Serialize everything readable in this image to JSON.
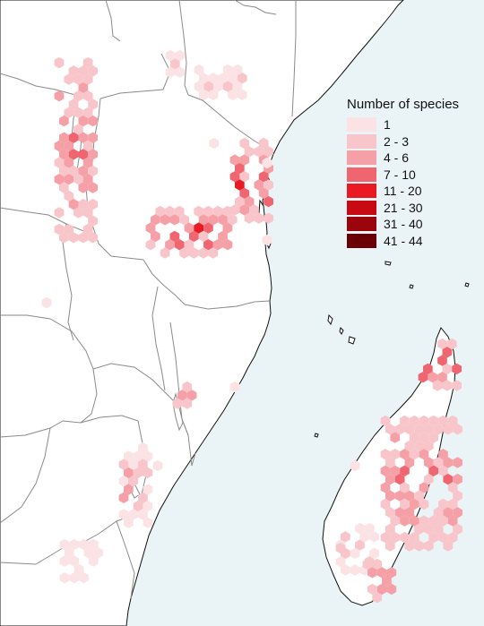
{
  "legend": {
    "title": "Number of species",
    "classes": [
      {
        "label": "1",
        "color": "#fbe3e5"
      },
      {
        "label": "2 - 3",
        "color": "#f8c6ca"
      },
      {
        "label": "4 - 6",
        "color": "#f5a0a6"
      },
      {
        "label": "7 - 10",
        "color": "#f06670"
      },
      {
        "label": "11 - 20",
        "color": "#ea1a22"
      },
      {
        "label": "21 - 30",
        "color": "#c80a12"
      },
      {
        "label": "31 - 40",
        "color": "#9a050b"
      },
      {
        "label": "41 - 44",
        "color": "#6a0005"
      }
    ]
  },
  "colors": {
    "ocean": "#eaf4f6",
    "land": "#ffffff",
    "border": "#8a8a8a",
    "coastline": "#111111"
  }
}
